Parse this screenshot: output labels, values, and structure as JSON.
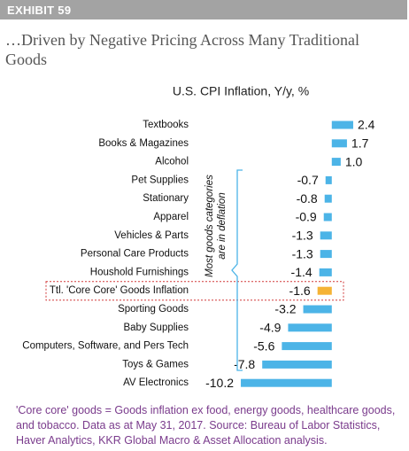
{
  "header": {
    "exhibit": "EXHIBIT 59",
    "title": "…Driven by Negative Pricing Across Many Traditional Goods"
  },
  "chart_data": {
    "type": "bar",
    "orientation": "horizontal",
    "title": "U.S. CPI Inflation, Y/y, %",
    "categories": [
      "Textbooks",
      "Books & Magazines",
      "Alcohol",
      "Pet Supplies",
      "Stationary",
      "Apparel",
      "Vehicles & Parts",
      "Personal Care Products",
      "Houshold Furnishings",
      "Ttl. 'Core Core' Goods Inflation",
      "Sporting Goods",
      "Baby Supplies",
      "Computers, Software, and Pers Tech",
      "Toys & Games",
      "AV Electronics"
    ],
    "values": [
      2.4,
      1.7,
      1.0,
      -0.7,
      -0.8,
      -0.9,
      -1.3,
      -1.3,
      -1.4,
      -1.6,
      -3.2,
      -4.9,
      -5.6,
      -7.8,
      -10.2
    ],
    "value_labels": [
      "2.4",
      "1.7",
      "1.0",
      "-0.7",
      "-0.8",
      "-0.9",
      "-1.3",
      "-1.3",
      "-1.4",
      "-1.6",
      "-3.2",
      "-4.9",
      "-5.6",
      "-7.8",
      "-10.2"
    ],
    "colors": [
      "#4cb4e7",
      "#4cb4e7",
      "#4cb4e7",
      "#4cb4e7",
      "#4cb4e7",
      "#4cb4e7",
      "#4cb4e7",
      "#4cb4e7",
      "#4cb4e7",
      "#f5b335",
      "#4cb4e7",
      "#4cb4e7",
      "#4cb4e7",
      "#4cb4e7",
      "#4cb4e7"
    ],
    "xlim": [
      -10.5,
      2.8
    ],
    "annotation": [
      "Most goods categories",
      "are in deflation"
    ]
  },
  "footnote": "'Core core' goods = Goods inflation ex food, energy goods, healthcare goods, and tobacco. Data as at May 31, 2017. Source: Bureau of Labor Statistics, Haver Analytics, KKR Global Macro & Asset Allocation analysis."
}
